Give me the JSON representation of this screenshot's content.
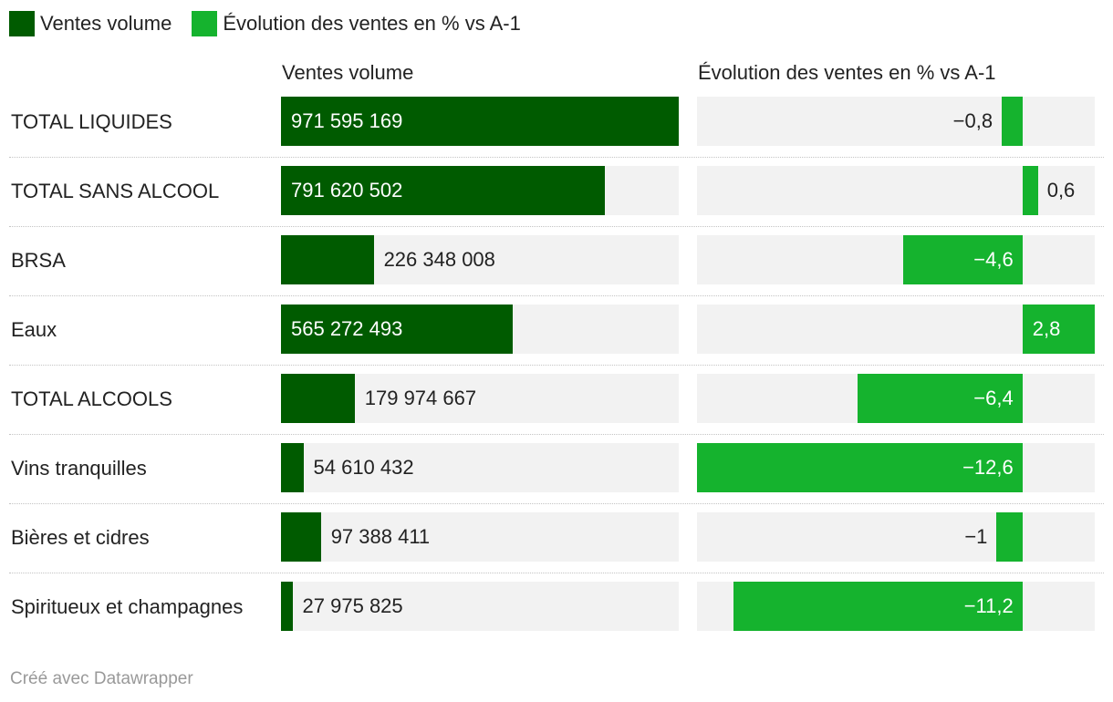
{
  "legend": [
    {
      "label": "Ventes volume",
      "color": "#005b00"
    },
    {
      "label": "Évolution des ventes en % vs A-1",
      "color": "#15b32e"
    }
  ],
  "footer": {
    "credit": "Créé avec Datawrapper"
  },
  "chart_data": {
    "type": "bar",
    "orientation": "horizontal",
    "grid": false,
    "legend_position": "top-left",
    "categories": [
      "TOTAL LIQUIDES",
      "TOTAL SANS ALCOOL",
      "BRSA",
      "Eaux",
      "TOTAL ALCOOLS",
      "Vins tranquilles",
      "Bières et cidres",
      "Spiritueux et champagnes"
    ],
    "series": [
      {
        "name": "Ventes volume",
        "color": "#005b00",
        "values": [
          971595169,
          791620502,
          226348008,
          565272493,
          179974667,
          54610432,
          97388411,
          27975825
        ],
        "labels": [
          "971 595 169",
          "791 620 502",
          "226 348 008",
          "565 272 493",
          "179 974 667",
          "54 610 432",
          "97 388 411",
          "27 975 825"
        ],
        "xlim": [
          0,
          971595169
        ]
      },
      {
        "name": "Évolution des ventes en % vs A-1",
        "color": "#15b32e",
        "values": [
          -0.8,
          0.6,
          -4.6,
          2.8,
          -6.4,
          -12.6,
          -1,
          -11.2
        ],
        "labels": [
          "−0,8",
          "0,6",
          "−4,6",
          "2,8",
          "−6,4",
          "−12,6",
          "−1",
          "−11,2"
        ],
        "xlim": [
          -12.6,
          2.8
        ]
      }
    ]
  }
}
